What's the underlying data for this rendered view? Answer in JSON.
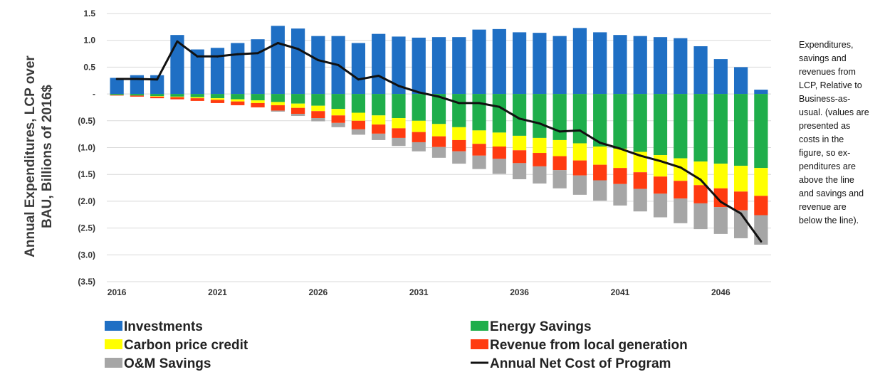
{
  "chart_data": {
    "type": "bar",
    "stacked": true,
    "ylabel_lines": [
      "Annual Expenditures, LCP over",
      "BAU, Billions of 2016$"
    ],
    "x": [
      2016,
      2017,
      2018,
      2019,
      2020,
      2021,
      2022,
      2023,
      2024,
      2025,
      2026,
      2027,
      2028,
      2029,
      2030,
      2031,
      2032,
      2033,
      2034,
      2035,
      2036,
      2037,
      2038,
      2039,
      2040,
      2041,
      2042,
      2043,
      2044,
      2045,
      2046,
      2047,
      2048
    ],
    "x_tick_labels": [
      "2016",
      "2021",
      "2026",
      "2031",
      "2036",
      "2041",
      "2046"
    ],
    "y_tick_values": [
      1.5,
      1.0,
      0.5,
      0,
      -0.5,
      -1.0,
      -1.5,
      -2.0,
      -2.5,
      -3.0,
      -3.5
    ],
    "y_tick_labels": [
      "1.5",
      "1.0",
      "0.5",
      "-",
      "(0.5)",
      "(1.0)",
      "(1.5)",
      "(2.0)",
      "(2.5)",
      "(3.0)",
      "(3.5)"
    ],
    "ylim": [
      -3.5,
      1.5
    ],
    "grid": "horizontal",
    "legend_position": "bottom",
    "series": [
      {
        "name": "Investments",
        "kind": "bar",
        "color": "#1f6fc4",
        "values": [
          0.3,
          0.35,
          0.35,
          1.1,
          0.83,
          0.86,
          0.95,
          1.02,
          1.27,
          1.22,
          1.08,
          1.08,
          0.95,
          1.12,
          1.07,
          1.05,
          1.06,
          1.06,
          1.2,
          1.21,
          1.15,
          1.14,
          1.08,
          1.23,
          1.15,
          1.1,
          1.08,
          1.06,
          1.04,
          0.89,
          0.65,
          0.5,
          0.08
        ]
      },
      {
        "name": "Energy Savings",
        "kind": "bar",
        "color": "#1fae4b",
        "values": [
          -0.02,
          -0.03,
          -0.04,
          -0.05,
          -0.06,
          -0.08,
          -0.1,
          -0.12,
          -0.15,
          -0.18,
          -0.22,
          -0.28,
          -0.35,
          -0.4,
          -0.45,
          -0.5,
          -0.56,
          -0.62,
          -0.68,
          -0.72,
          -0.78,
          -0.82,
          -0.86,
          -0.92,
          -0.98,
          -1.02,
          -1.08,
          -1.14,
          -1.2,
          -1.26,
          -1.3,
          -1.34,
          -1.38
        ]
      },
      {
        "name": "Carbon price credit",
        "kind": "bar",
        "color": "#ffff00",
        "values": [
          0,
          0,
          -0.01,
          -0.01,
          -0.02,
          -0.03,
          -0.04,
          -0.05,
          -0.06,
          -0.08,
          -0.1,
          -0.12,
          -0.15,
          -0.17,
          -0.19,
          -0.21,
          -0.23,
          -0.24,
          -0.25,
          -0.26,
          -0.27,
          -0.28,
          -0.3,
          -0.32,
          -0.34,
          -0.36,
          -0.38,
          -0.4,
          -0.42,
          -0.44,
          -0.46,
          -0.48,
          -0.52
        ]
      },
      {
        "name": "Revenue from local generation",
        "kind": "bar",
        "color": "#ff3b10",
        "values": [
          -0.01,
          -0.02,
          -0.03,
          -0.04,
          -0.05,
          -0.06,
          -0.07,
          -0.08,
          -0.1,
          -0.11,
          -0.13,
          -0.14,
          -0.16,
          -0.17,
          -0.18,
          -0.19,
          -0.2,
          -0.21,
          -0.22,
          -0.23,
          -0.24,
          -0.25,
          -0.26,
          -0.28,
          -0.29,
          -0.3,
          -0.31,
          -0.32,
          -0.33,
          -0.34,
          -0.35,
          -0.35,
          -0.36
        ]
      },
      {
        "name": "O&M Savings",
        "kind": "bar",
        "color": "#a6a6a6",
        "values": [
          0,
          0,
          0,
          0,
          0,
          0,
          0,
          0,
          -0.02,
          -0.04,
          -0.06,
          -0.08,
          -0.1,
          -0.12,
          -0.15,
          -0.17,
          -0.2,
          -0.23,
          -0.25,
          -0.28,
          -0.3,
          -0.32,
          -0.34,
          -0.36,
          -0.38,
          -0.4,
          -0.42,
          -0.44,
          -0.46,
          -0.48,
          -0.5,
          -0.52,
          -0.55
        ]
      },
      {
        "name": "Annual Net Cost of Program",
        "kind": "line",
        "color": "#111111",
        "values": [
          0.28,
          0.28,
          0.27,
          0.98,
          0.7,
          0.7,
          0.74,
          0.76,
          0.95,
          0.84,
          0.63,
          0.54,
          0.27,
          0.34,
          0.15,
          0.03,
          -0.05,
          -0.17,
          -0.17,
          -0.24,
          -0.46,
          -0.55,
          -0.7,
          -0.68,
          -0.91,
          -1.02,
          -1.15,
          -1.25,
          -1.37,
          -1.6,
          -2.01,
          -2.23,
          -2.75
        ]
      }
    ]
  },
  "caption": "Expenditures,\nsavings and\nrevenues from\nLCP, Relative to\nBusiness-as-\nusual. (values are\npresented as\ncosts in the\nfigure, so ex-\npenditures are\nabove the line\nand savings and\nrevenue are\nbelow the line)."
}
